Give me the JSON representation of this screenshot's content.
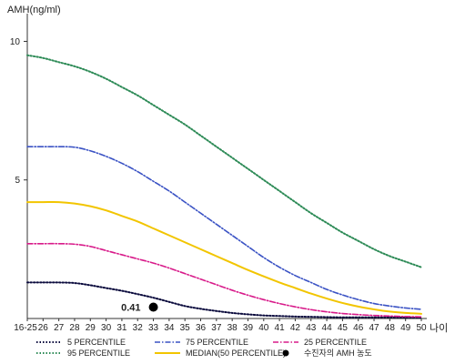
{
  "chart_data": {
    "type": "line",
    "ylabel": "AMH(ng/ml)",
    "xlabel": "나이",
    "y_ticks": [
      "10",
      "5"
    ],
    "y_tick_values": [
      10,
      5
    ],
    "ylim": [
      0,
      11
    ],
    "x_ticks": [
      "16-25",
      "26",
      "27",
      "28",
      "29",
      "30",
      "31",
      "32",
      "33",
      "34",
      "35",
      "36",
      "37",
      "38",
      "39",
      "40",
      "41",
      "42",
      "43",
      "44",
      "45",
      "46",
      "47",
      "48",
      "49",
      "50"
    ],
    "x": [
      25,
      26,
      27,
      28,
      29,
      30,
      31,
      32,
      33,
      34,
      35,
      36,
      37,
      38,
      39,
      40,
      41,
      42,
      43,
      44,
      45,
      46,
      47,
      48,
      49,
      50
    ],
    "grid": false,
    "legend_position": "bottom",
    "series": [
      {
        "name": "5 PERCENTILE",
        "color": "#0a0a3c",
        "dash": "dotted",
        "values": [
          1.3,
          1.3,
          1.3,
          1.28,
          1.2,
          1.1,
          1.0,
          0.88,
          0.75,
          0.6,
          0.45,
          0.35,
          0.27,
          0.2,
          0.15,
          0.11,
          0.09,
          0.07,
          0.06,
          0.05,
          0.04,
          0.04,
          0.04,
          0.04,
          0.03,
          0.03
        ]
      },
      {
        "name": "75 PERCENTILE",
        "color": "#3a52c4",
        "dash": "dashdot",
        "values": [
          6.2,
          6.2,
          6.2,
          6.18,
          6.05,
          5.85,
          5.6,
          5.3,
          4.95,
          4.6,
          4.2,
          3.8,
          3.4,
          3.0,
          2.6,
          2.2,
          1.85,
          1.55,
          1.3,
          1.05,
          0.85,
          0.68,
          0.54,
          0.45,
          0.38,
          0.33
        ]
      },
      {
        "name": "25 PERCENTILE",
        "color": "#d81b8a",
        "dash": "dashdot",
        "values": [
          2.7,
          2.7,
          2.7,
          2.68,
          2.6,
          2.45,
          2.3,
          2.15,
          2.0,
          1.82,
          1.62,
          1.42,
          1.22,
          1.02,
          0.84,
          0.68,
          0.54,
          0.42,
          0.32,
          0.24,
          0.18,
          0.14,
          0.11,
          0.09,
          0.07,
          0.06
        ]
      },
      {
        "name": "95 PERCENTILE",
        "color": "#2e8b57",
        "dash": "dotted",
        "values": [
          9.5,
          9.4,
          9.25,
          9.1,
          8.9,
          8.65,
          8.35,
          8.05,
          7.7,
          7.35,
          7.0,
          6.6,
          6.2,
          5.8,
          5.4,
          5.0,
          4.6,
          4.2,
          3.8,
          3.45,
          3.1,
          2.8,
          2.5,
          2.25,
          2.05,
          1.85
        ]
      },
      {
        "name": "MEDIAN(50 PERCENTILE)",
        "color": "#f2c500",
        "dash": "solid",
        "values": [
          4.2,
          4.2,
          4.2,
          4.15,
          4.05,
          3.9,
          3.7,
          3.5,
          3.25,
          3.0,
          2.75,
          2.5,
          2.25,
          2.0,
          1.75,
          1.52,
          1.3,
          1.1,
          0.9,
          0.72,
          0.56,
          0.43,
          0.33,
          0.25,
          0.2,
          0.17
        ]
      }
    ],
    "marker": {
      "name": "수진자의 AMH 농도",
      "x": 33,
      "y": 0.41,
      "label": "0.41",
      "color": "#000000"
    }
  }
}
